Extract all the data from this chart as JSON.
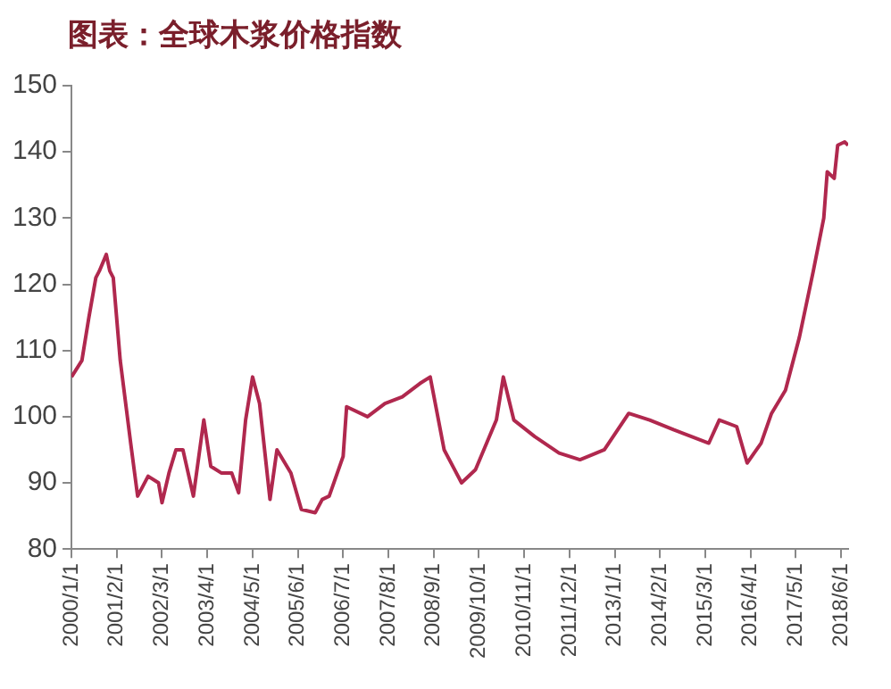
{
  "chart_data": {
    "type": "line",
    "title": "图表：全球木浆价格指数",
    "x": [
      "2000-01",
      "2000-04",
      "2000-06",
      "2000-08",
      "2000-09",
      "2000-11",
      "2000-12",
      "2001-01",
      "2001-03",
      "2001-06",
      "2001-08",
      "2001-11",
      "2002-02",
      "2002-03",
      "2002-05",
      "2002-07",
      "2002-09",
      "2002-12",
      "2003-03",
      "2003-05",
      "2003-08",
      "2003-11",
      "2004-01",
      "2004-03",
      "2004-05",
      "2004-07",
      "2004-10",
      "2004-12",
      "2005-04",
      "2005-07",
      "2005-11",
      "2006-01",
      "2006-03",
      "2006-07",
      "2006-08",
      "2007-02",
      "2007-07",
      "2007-12",
      "2008-05",
      "2008-08",
      "2008-12",
      "2009-05",
      "2009-09",
      "2010-03",
      "2010-05",
      "2010-08",
      "2011-02",
      "2011-09",
      "2012-03",
      "2012-10",
      "2013-05",
      "2013-11",
      "2014-06",
      "2014-11",
      "2015-04",
      "2015-07",
      "2015-12",
      "2016-03",
      "2016-07",
      "2016-10",
      "2017-02",
      "2017-06",
      "2017-10",
      "2018-01",
      "2018-02",
      "2018-04",
      "2018-05",
      "2018-07",
      "2018-08"
    ],
    "series": [
      {
        "color": "#b0284e",
        "values": [
          106,
          108.5,
          115,
          121,
          122,
          124.5,
          122,
          121,
          108.5,
          96,
          88,
          91,
          90,
          87,
          91.5,
          95,
          95,
          88,
          99.5,
          92.5,
          91.5,
          91.5,
          88.5,
          99.5,
          106,
          102,
          87.5,
          95,
          91.5,
          86,
          85.5,
          87.5,
          88,
          94,
          101.5,
          100,
          102,
          103,
          105,
          106,
          95,
          90,
          92,
          99.5,
          106,
          99.5,
          97,
          94.5,
          93.5,
          95,
          100.5,
          99.5,
          98,
          97,
          96,
          99.5,
          98.5,
          93,
          96,
          100.5,
          104,
          112,
          122,
          130,
          137,
          136,
          141,
          141.5,
          141
        ]
      }
    ],
    "xlim": [
      "2000-01",
      "2018-08"
    ],
    "xticks": [
      {
        "value": "2000-01",
        "label": "2000/1/1"
      },
      {
        "value": "2001-02",
        "label": "2001/2/1"
      },
      {
        "value": "2002-03",
        "label": "2002/3/1"
      },
      {
        "value": "2003-04",
        "label": "2003/4/1"
      },
      {
        "value": "2004-05",
        "label": "2004/5/1"
      },
      {
        "value": "2005-06",
        "label": "2005/6/1"
      },
      {
        "value": "2006-07",
        "label": "2006/7/1"
      },
      {
        "value": "2007-08",
        "label": "2007/8/1"
      },
      {
        "value": "2008-09",
        "label": "2008/9/1"
      },
      {
        "value": "2009-10",
        "label": "2009/10/1"
      },
      {
        "value": "2010-11",
        "label": "2010/11/1"
      },
      {
        "value": "2011-12",
        "label": "2011/12/1"
      },
      {
        "value": "2013-01",
        "label": "2013/1/1"
      },
      {
        "value": "2014-02",
        "label": "2014/2/1"
      },
      {
        "value": "2015-03",
        "label": "2015/3/1"
      },
      {
        "value": "2016-04",
        "label": "2016/4/1"
      },
      {
        "value": "2017-05",
        "label": "2017/5/1"
      },
      {
        "value": "2018-06",
        "label": "2018/6/1"
      }
    ],
    "ylim": [
      80,
      150
    ],
    "yticks": [
      80,
      90,
      100,
      110,
      120,
      130,
      140,
      150
    ],
    "grid": false,
    "legend": false,
    "marker": "none",
    "line_style": "solid"
  }
}
